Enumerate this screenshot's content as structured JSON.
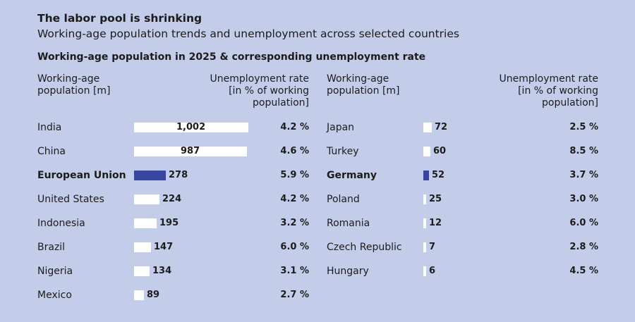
{
  "title": "The labor pool is shrinking",
  "subtitle": "Working-age population trends and unemployment across selected countries",
  "section_title": "Working-age population in 2025 & corresponding unemployment rate",
  "col_header_population": "Working-age\npopulation [m]",
  "col_header_rate": "Unemployment rate\n[in % of working\npopulation]",
  "colors": {
    "background": "#c3cde9",
    "bar": "#ffffff",
    "highlight_bar": "#3a45a1"
  },
  "chart_data": {
    "type": "bar",
    "orientation": "horizontal",
    "title": "Working-age population in 2025 & corresponding unemployment rate",
    "unit_population": "m",
    "unit_rate": "%",
    "xlim": [
      0,
      1002
    ],
    "groups": [
      {
        "rows": [
          {
            "country": "India",
            "population": 1002,
            "population_label": "1,002",
            "rate": 4.2,
            "rate_label": "4.2 %",
            "highlight": false
          },
          {
            "country": "China",
            "population": 987,
            "population_label": "987",
            "rate": 4.6,
            "rate_label": "4.6 %",
            "highlight": false
          },
          {
            "country": "European Union",
            "population": 278,
            "population_label": "278",
            "rate": 5.9,
            "rate_label": "5.9 %",
            "highlight": true
          },
          {
            "country": "United States",
            "population": 224,
            "population_label": "224",
            "rate": 4.2,
            "rate_label": "4.2 %",
            "highlight": false
          },
          {
            "country": "Indonesia",
            "population": 195,
            "population_label": "195",
            "rate": 3.2,
            "rate_label": "3.2 %",
            "highlight": false
          },
          {
            "country": "Brazil",
            "population": 147,
            "population_label": "147",
            "rate": 6.0,
            "rate_label": "6.0 %",
            "highlight": false
          },
          {
            "country": "Nigeria",
            "population": 134,
            "population_label": "134",
            "rate": 3.1,
            "rate_label": "3.1 %",
            "highlight": false
          },
          {
            "country": "Mexico",
            "population": 89,
            "population_label": "89",
            "rate": 2.7,
            "rate_label": "2.7 %",
            "highlight": false
          }
        ]
      },
      {
        "rows": [
          {
            "country": "Japan",
            "population": 72,
            "population_label": "72",
            "rate": 2.5,
            "rate_label": "2.5 %",
            "highlight": false
          },
          {
            "country": "Turkey",
            "population": 60,
            "population_label": "60",
            "rate": 8.5,
            "rate_label": "8.5 %",
            "highlight": false
          },
          {
            "country": "Germany",
            "population": 52,
            "population_label": "52",
            "rate": 3.7,
            "rate_label": "3.7 %",
            "highlight": true
          },
          {
            "country": "Poland",
            "population": 25,
            "population_label": "25",
            "rate": 3.0,
            "rate_label": "3.0 %",
            "highlight": false
          },
          {
            "country": "Romania",
            "population": 12,
            "population_label": "12",
            "rate": 6.0,
            "rate_label": "6.0 %",
            "highlight": false
          },
          {
            "country": "Czech Republic",
            "population": 7,
            "population_label": "7",
            "rate": 2.8,
            "rate_label": "2.8 %",
            "highlight": false
          },
          {
            "country": "Hungary",
            "population": 6,
            "population_label": "6",
            "rate": 4.5,
            "rate_label": "4.5 %",
            "highlight": false
          }
        ]
      }
    ]
  }
}
